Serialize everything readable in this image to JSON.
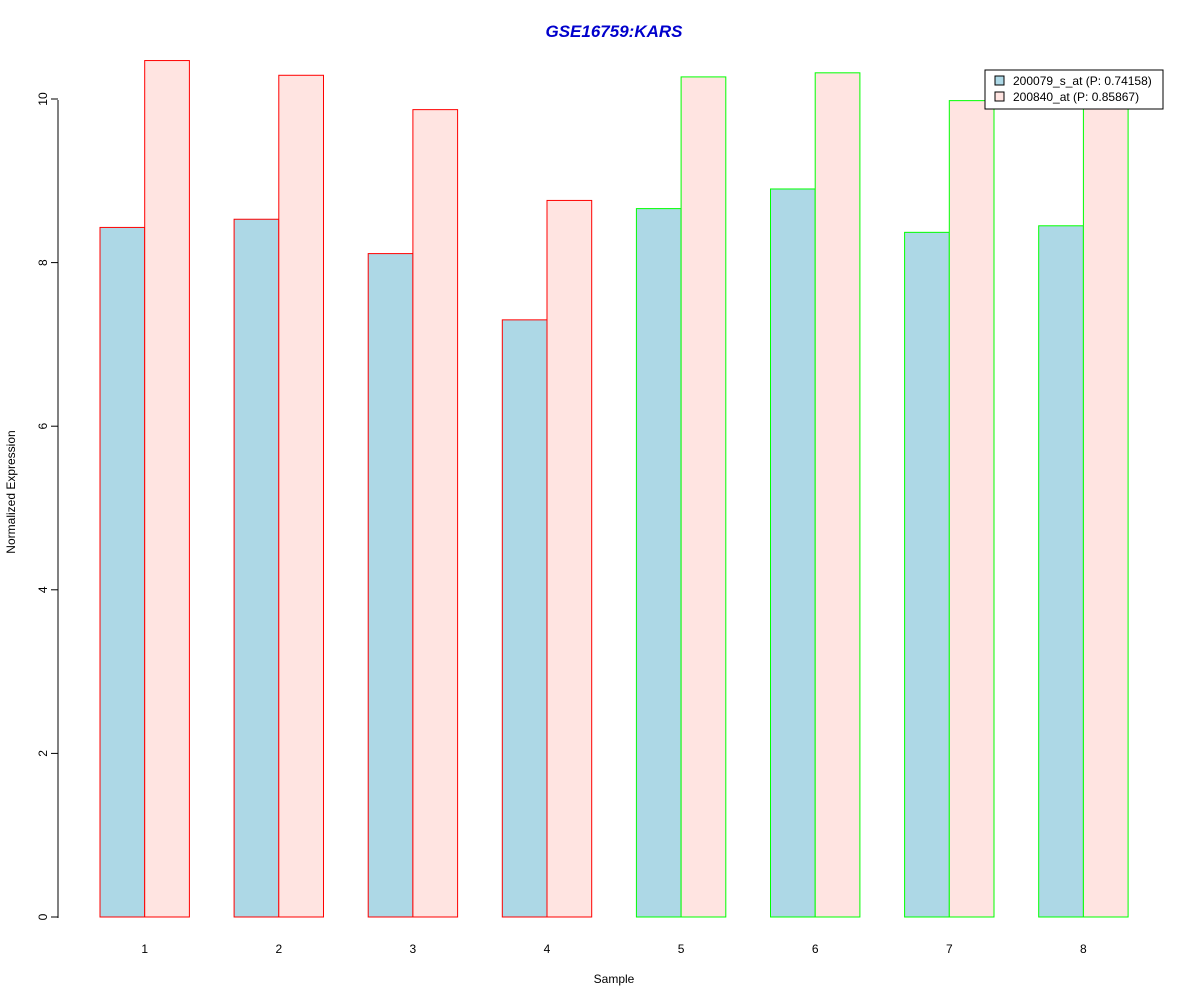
{
  "chart_data": {
    "type": "bar",
    "title": "GSE16759:KARS",
    "title_color": "#0000cc",
    "xlabel": "Sample",
    "ylabel": "Normalized Expression",
    "categories": [
      "1",
      "2",
      "3",
      "4",
      "5",
      "6",
      "7",
      "8"
    ],
    "ylim": [
      0,
      10.5
    ],
    "yticks": [
      "0",
      "2",
      "4",
      "6",
      "8",
      "10"
    ],
    "series": [
      {
        "name": "200079_s_at (P: 0.74158)",
        "fill": "#add8e6",
        "values": [
          8.43,
          8.53,
          8.11,
          7.3,
          8.66,
          8.9,
          8.37,
          8.45
        ]
      },
      {
        "name": "200840_at (P: 0.85867)",
        "fill": "#ffe4e1",
        "values": [
          10.47,
          10.29,
          9.87,
          8.76,
          10.27,
          10.32,
          9.98,
          9.93
        ]
      }
    ],
    "group_border_colors": [
      "#ff0000",
      "#ff0000",
      "#ff0000",
      "#ff0000",
      "#00ff00",
      "#00ff00",
      "#00ff00",
      "#00ff00"
    ],
    "legend_position": "top-right",
    "grid": false
  }
}
